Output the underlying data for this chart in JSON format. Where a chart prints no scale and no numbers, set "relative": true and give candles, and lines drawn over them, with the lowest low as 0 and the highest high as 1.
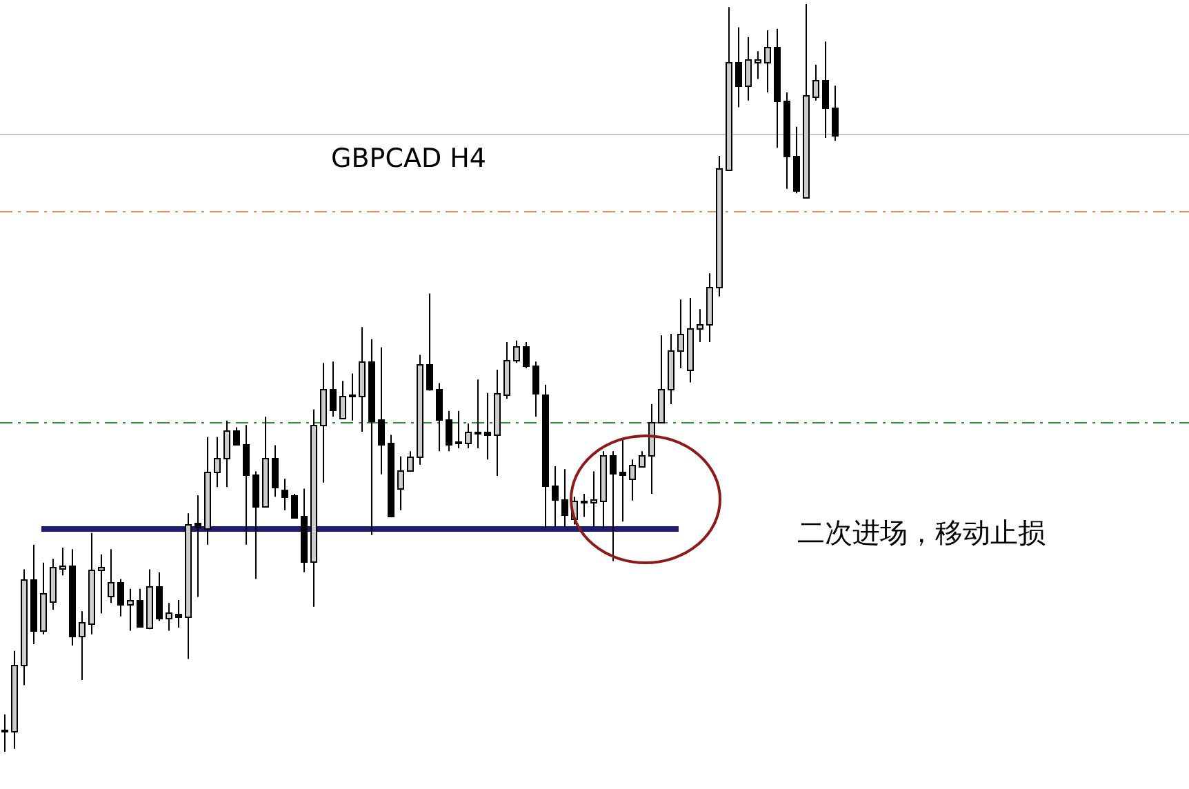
{
  "chart_data": {
    "type": "candlestick",
    "title": "GBPCAD H4",
    "relative": true,
    "categories": [
      null,
      null,
      null,
      null,
      null,
      null,
      null,
      null,
      null,
      null,
      null,
      null,
      null,
      null,
      null,
      null,
      null,
      null,
      null,
      null,
      null,
      null,
      null,
      null,
      null,
      null,
      null,
      null,
      null,
      null,
      null,
      null,
      null,
      null,
      null,
      null,
      null,
      null,
      null,
      null,
      null,
      null,
      null,
      null,
      null,
      null,
      null,
      null,
      null,
      null,
      null,
      null,
      null,
      null,
      null,
      null,
      null,
      null,
      null,
      null,
      null,
      null,
      null,
      null,
      null,
      null,
      null,
      null,
      null,
      null,
      null,
      null,
      null,
      null,
      null,
      null,
      null,
      null,
      null,
      null,
      null,
      null,
      null,
      null,
      null,
      null,
      null
    ],
    "ohlc": [
      [
        0.03,
        0.05,
        0,
        0.028
      ],
      [
        0.028,
        0.135,
        0.004,
        0.116
      ],
      [
        0.116,
        0.244,
        0.089,
        0.231
      ],
      [
        0.231,
        0.277,
        0.144,
        0.162
      ],
      [
        0.162,
        0.253,
        0.157,
        0.212
      ],
      [
        0.201,
        0.258,
        0.19,
        0.247
      ],
      [
        0.245,
        0.273,
        0.236,
        0.249
      ],
      [
        0.249,
        0.271,
        0.142,
        0.155
      ],
      [
        0.155,
        0.188,
        0.096,
        0.173
      ],
      [
        0.172,
        0.293,
        0.157,
        0.244
      ],
      [
        0.244,
        0.264,
        0.185,
        0.247
      ],
      [
        0.208,
        0.271,
        0.199,
        0.227
      ],
      [
        0.227,
        0.231,
        0.181,
        0.197
      ],
      [
        0.197,
        0.218,
        0.162,
        0.203
      ],
      [
        0.203,
        0.218,
        0.166,
        0.168
      ],
      [
        0.166,
        0.244,
        0.164,
        0.221
      ],
      [
        0.221,
        0.24,
        0.175,
        0.179
      ],
      [
        0.179,
        0.199,
        0.162,
        0.186
      ],
      [
        0.185,
        0.203,
        0.166,
        0.181
      ],
      [
        0.181,
        0.319,
        0.124,
        0.304
      ],
      [
        0.306,
        0.343,
        0.207,
        0.301
      ],
      [
        0.299,
        0.421,
        0.277,
        0.375
      ],
      [
        0.375,
        0.421,
        0.354,
        0.393
      ],
      [
        0.393,
        0.443,
        0.354,
        0.43
      ],
      [
        0.43,
        0.434,
        0.41,
        0.411
      ],
      [
        0.411,
        0.437,
        0.277,
        0.371
      ],
      [
        0.371,
        0.375,
        0.231,
        0.328
      ],
      [
        0.328,
        0.448,
        0.327,
        0.393
      ],
      [
        0.393,
        0.41,
        0.341,
        0.354
      ],
      [
        0.351,
        0.365,
        0.323,
        0.341
      ],
      [
        0.343,
        0.345,
        0.312,
        0.314
      ],
      [
        0.315,
        0.352,
        0.24,
        0.255
      ],
      [
        0.255,
        0.458,
        0.194,
        0.437
      ],
      [
        0.437,
        0.52,
        0.36,
        0.485
      ],
      [
        0.485,
        0.522,
        0.448,
        0.458
      ],
      [
        0.446,
        0.496,
        0.445,
        0.476
      ],
      [
        0.476,
        0.506,
        0.443,
        0.478
      ],
      [
        0.476,
        0.568,
        0.428,
        0.522
      ],
      [
        0.522,
        0.552,
        0.29,
        0.443
      ],
      [
        0.445,
        0.541,
        0.371,
        0.411
      ],
      [
        0.413,
        0.424,
        0.314,
        0.315
      ],
      [
        0.352,
        0.395,
        0.323,
        0.376
      ],
      [
        0.376,
        0.402,
        0.375,
        0.395
      ],
      [
        0.395,
        0.531,
        0.384,
        0.518
      ],
      [
        0.518,
        0.613,
        0.483,
        0.485
      ],
      [
        0.485,
        0.493,
        0.402,
        0.445
      ],
      [
        0.445,
        0.456,
        0.402,
        0.411
      ],
      [
        0.415,
        0.456,
        0.406,
        0.413
      ],
      [
        0.413,
        0.439,
        0.406,
        0.428
      ],
      [
        0.426,
        0.498,
        0.406,
        0.428
      ],
      [
        0.428,
        0.48,
        0.391,
        0.424
      ],
      [
        0.424,
        0.511,
        0.369,
        0.48
      ],
      [
        0.478,
        0.548,
        0.472,
        0.524
      ],
      [
        0.524,
        0.55,
        0.52,
        0.542
      ],
      [
        0.542,
        0.548,
        0.513,
        0.517
      ],
      [
        0.517,
        0.522,
        0.448,
        0.48
      ],
      [
        0.478,
        0.491,
        0.299,
        0.356
      ],
      [
        0.356,
        0.382,
        0.301,
        0.338
      ],
      [
        0.338,
        0.378,
        0.301,
        0.317
      ],
      [
        0.312,
        0.341,
        0.304,
        0.336
      ],
      [
        0.334,
        0.345,
        0.314,
        0.336
      ],
      [
        0.334,
        0.375,
        0.301,
        0.338
      ],
      [
        0.336,
        0.402,
        0.299,
        0.397
      ],
      [
        0.397,
        0.402,
        0.255,
        0.373
      ],
      [
        0.375,
        0.419,
        0.308,
        0.371
      ],
      [
        0.365,
        0.391,
        0.336,
        0.384
      ],
      [
        0.382,
        0.402,
        0.38,
        0.397
      ],
      [
        0.397,
        0.465,
        0.345,
        0.441
      ],
      [
        0.441,
        0.557,
        0.439,
        0.485
      ],
      [
        0.485,
        0.559,
        0.465,
        0.537
      ],
      [
        0.537,
        0.605,
        0.513,
        0.559
      ],
      [
        0.511,
        0.607,
        0.494,
        0.566
      ],
      [
        0.566,
        0.592,
        0.548,
        0.572
      ],
      [
        0.572,
        0.64,
        0.548,
        0.622
      ],
      [
        0.622,
        0.797,
        0.609,
        0.78
      ],
      [
        0.78,
        0.996,
        0.779,
        0.923
      ],
      [
        0.923,
        0.969,
        0.862,
        0.891
      ],
      [
        0.891,
        0.956,
        0.871,
        0.926
      ],
      [
        0.923,
        0.937,
        0.9,
        0.926
      ],
      [
        0.923,
        0.965,
        0.882,
        0.943
      ],
      [
        0.943,
        0.967,
        0.808,
        0.871
      ],
      [
        0.871,
        0.882,
        0.753,
        0.797
      ],
      [
        0.797,
        0.836,
        0.747,
        0.751
      ],
      [
        0.742,
        1,
        0.74,
        0.878
      ],
      [
        0.876,
        0.919,
        0.871,
        0.899
      ],
      [
        0.899,
        0.95,
        0.821,
        0.862
      ],
      [
        0.862,
        0.891,
        0.817,
        0.825
      ]
    ],
    "ref_lines": [
      {
        "axis": "y",
        "value": 0.827,
        "color": "#c8c8c8",
        "line_style": "solid"
      },
      {
        "axis": "y",
        "value": 0.723,
        "color": "#e0905a",
        "line_style": "dashed"
      },
      {
        "axis": "y",
        "value": 0.441,
        "color": "#2e8b2e",
        "line_style": "dashed"
      },
      {
        "axis": "y",
        "value": 0.299,
        "color": "#1c1c6e",
        "line_style": "solid"
      }
    ],
    "annotations": [
      "二次进场，移动止损"
    ]
  }
}
